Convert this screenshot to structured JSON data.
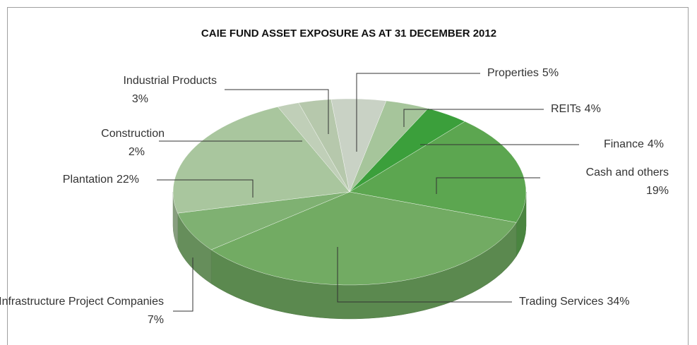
{
  "chart_data": {
    "type": "pie",
    "title": "CAIE FUND ASSET EXPOSURE AS AT 31 DECEMBER 2012",
    "categories": [
      "Properties",
      "REITs",
      "Finance",
      "Cash and others",
      "Trading Services",
      "Infrastructure Project Companies",
      "Plantation",
      "Construction",
      "Industrial Products"
    ],
    "values": [
      5,
      4,
      4,
      19,
      34,
      7,
      22,
      2,
      3
    ],
    "value_labels": [
      "5%",
      "4%",
      "4%",
      "19%",
      "34%",
      "7%",
      "22%",
      "2%",
      "3%"
    ],
    "colors": [
      "#c9d2c5",
      "#a6c59b",
      "#3b9f3b",
      "#5ca650",
      "#72ab63",
      "#7fb172",
      "#a9c69e",
      "#c0cfb8",
      "#b6c8ac"
    ]
  }
}
